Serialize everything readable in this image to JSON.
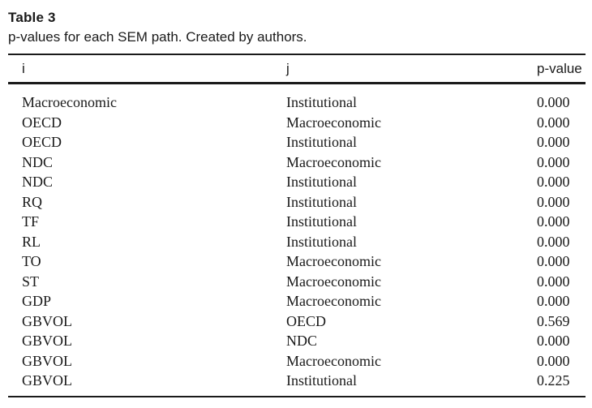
{
  "caption": {
    "title": "Table 3",
    "text": "p-values for each SEM path. Created by authors."
  },
  "headers": {
    "i": "i",
    "j": "j",
    "p": "p-value"
  },
  "rows": [
    {
      "i": "Macroeconomic",
      "j": "Institutional",
      "p": "0.000"
    },
    {
      "i": "OECD",
      "j": "Macroeconomic",
      "p": "0.000"
    },
    {
      "i": "OECD",
      "j": "Institutional",
      "p": "0.000"
    },
    {
      "i": "NDC",
      "j": "Macroeconomic",
      "p": "0.000"
    },
    {
      "i": "NDC",
      "j": "Institutional",
      "p": "0.000"
    },
    {
      "i": "RQ",
      "j": "Institutional",
      "p": "0.000"
    },
    {
      "i": "TF",
      "j": "Institutional",
      "p": "0.000"
    },
    {
      "i": "RL",
      "j": "Institutional",
      "p": "0.000"
    },
    {
      "i": "TO",
      "j": "Macroeconomic",
      "p": "0.000"
    },
    {
      "i": "ST",
      "j": "Macroeconomic",
      "p": "0.000"
    },
    {
      "i": "GDP",
      "j": "Macroeconomic",
      "p": "0.000"
    },
    {
      "i": "GBVOL",
      "j": "OECD",
      "p": "0.569"
    },
    {
      "i": "GBVOL",
      "j": "NDC",
      "p": "0.000"
    },
    {
      "i": "GBVOL",
      "j": "Macroeconomic",
      "p": "0.000"
    },
    {
      "i": "GBVOL",
      "j": "Institutional",
      "p": "0.225"
    }
  ]
}
